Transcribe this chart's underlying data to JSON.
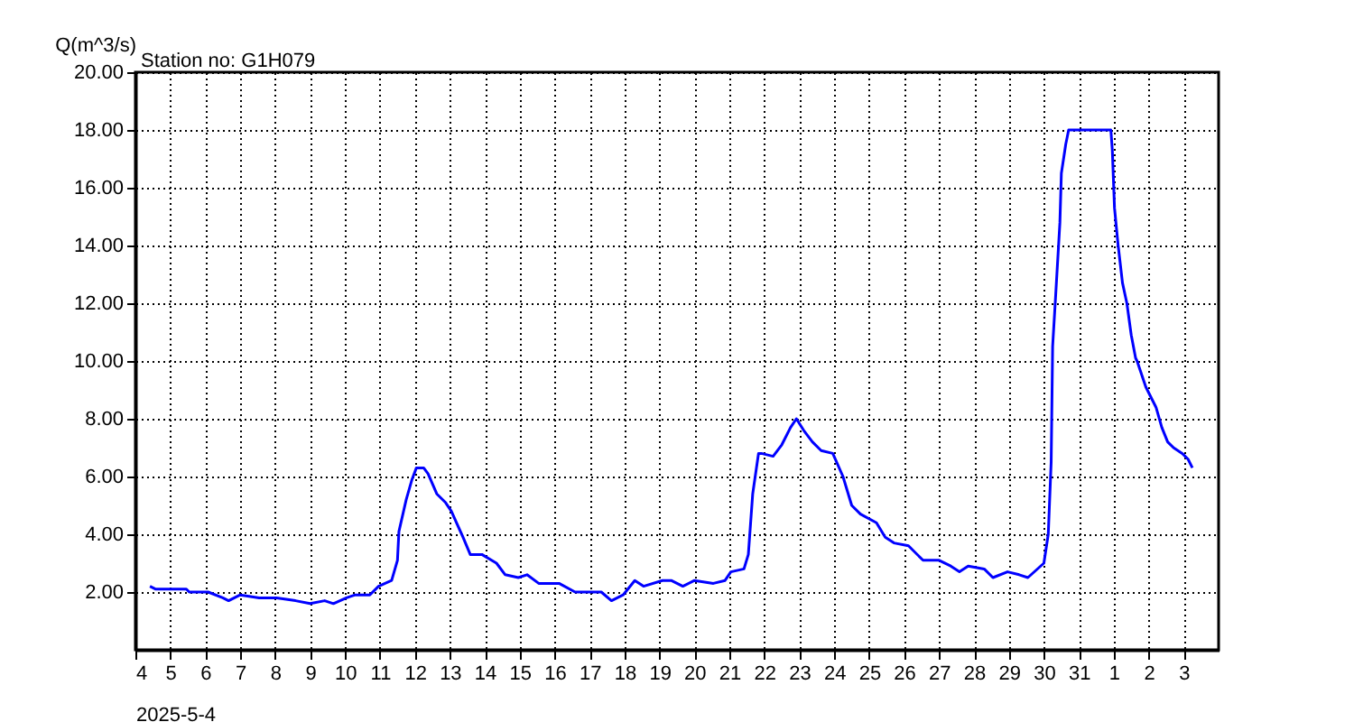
{
  "chart_data": {
    "type": "line",
    "title": "Station no: G1H079",
    "ylabel": "Q(m^3/s)",
    "xlabel": "2025-5-4",
    "x": [
      "2025-05-04T10:00",
      "2025-05-04T14:00",
      "2025-05-05T11:00",
      "2025-05-05T13:00",
      "2025-05-06T02:00",
      "2025-05-06T12:00",
      "2025-05-06T16:00",
      "2025-05-07T00:00",
      "2025-05-07T13:00",
      "2025-05-08T01:00",
      "2025-05-08T14:00",
      "2025-05-09T00:00",
      "2025-05-09T10:00",
      "2025-05-09T16:00",
      "2025-05-10T01:00",
      "2025-05-10T07:00",
      "2025-05-10T17:00",
      "2025-05-10T23:00",
      "2025-05-11T08:00",
      "2025-05-11T12:00",
      "2025-05-11T13:00",
      "2025-05-11T18:00",
      "2025-05-11T22:00",
      "2025-05-12T01:00",
      "2025-05-12T06:00",
      "2025-05-12T09:00",
      "2025-05-12T15:00",
      "2025-05-12T21:00",
      "2025-05-13T01:00",
      "2025-05-13T09:00",
      "2025-05-13T14:00",
      "2025-05-13T22:00",
      "2025-05-14T08:00",
      "2025-05-14T14:00",
      "2025-05-14T23:00",
      "2025-05-15T05:00",
      "2025-05-15T13:00",
      "2025-05-15T21:00",
      "2025-05-16T03:00",
      "2025-05-16T14:00",
      "2025-05-16T22:00",
      "2025-05-17T08:00",
      "2025-05-17T15:00",
      "2025-05-17T23:00",
      "2025-05-18T07:00",
      "2025-05-18T13:00",
      "2025-05-19T02:00",
      "2025-05-19T08:00",
      "2025-05-19T16:00",
      "2025-05-20T00:00",
      "2025-05-20T13:00",
      "2025-05-20T21:00",
      "2025-05-21T01:00",
      "2025-05-21T10:00",
      "2025-05-21T13:00",
      "2025-05-21T16:00",
      "2025-05-21T20:00",
      "2025-05-21T22:00",
      "2025-05-22T06:00",
      "2025-05-22T12:00",
      "2025-05-22T18:00",
      "2025-05-22T22:00",
      "2025-05-23T03:00",
      "2025-05-23T09:00",
      "2025-05-23T15:00",
      "2025-05-23T23:00",
      "2025-05-24T06:00",
      "2025-05-24T12:00",
      "2025-05-24T18:00",
      "2025-05-25T05:00",
      "2025-05-25T11:00",
      "2025-05-25T17:00",
      "2025-05-26T03:00",
      "2025-05-26T13:00",
      "2025-05-27T00:00",
      "2025-05-27T08:00",
      "2025-05-27T14:00",
      "2025-05-27T20:00",
      "2025-05-28T07:00",
      "2025-05-28T13:00",
      "2025-05-28T23:00",
      "2025-05-29T07:00",
      "2025-05-29T13:00",
      "2025-05-30T00:00",
      "2025-05-30T03:00",
      "2025-05-30T05:00",
      "2025-05-30T06:00",
      "2025-05-30T08:00",
      "2025-05-30T11:00",
      "2025-05-30T12:00",
      "2025-05-30T15:00",
      "2025-05-30T17:00",
      "2025-05-31T22:00",
      "2025-05-31T23:00",
      "2025-06-01T00:30",
      "2025-06-01T03:00",
      "2025-06-01T06:00",
      "2025-06-01T09:00",
      "2025-06-01T12:00",
      "2025-06-01T15:00",
      "2025-06-01T16:00",
      "2025-06-01T22:00",
      "2025-06-02T05:00",
      "2025-06-02T09:00",
      "2025-06-02T13:00",
      "2025-06-02T17:00",
      "2025-06-02T23:00",
      "2025-06-03T03:00",
      "2025-06-03T06:00"
    ],
    "series": [
      {
        "color": "#0000ff",
        "values": [
          2.2,
          2.1,
          2.1,
          2.0,
          2.0,
          1.8,
          1.7,
          1.9,
          1.8,
          1.8,
          1.7,
          1.6,
          1.7,
          1.6,
          1.8,
          1.9,
          1.9,
          2.2,
          2.4,
          3.1,
          4.1,
          5.2,
          5.9,
          6.3,
          6.3,
          6.1,
          5.4,
          5.1,
          4.8,
          3.9,
          3.3,
          3.3,
          3.0,
          2.6,
          2.5,
          2.6,
          2.3,
          2.3,
          2.3,
          2.0,
          2.0,
          2.0,
          1.7,
          1.9,
          2.4,
          2.2,
          2.4,
          2.4,
          2.2,
          2.4,
          2.3,
          2.4,
          2.7,
          2.8,
          3.3,
          5.4,
          6.8,
          6.8,
          6.7,
          7.1,
          7.7,
          8.0,
          7.6,
          7.2,
          6.9,
          6.8,
          6.0,
          5.0,
          4.7,
          4.4,
          3.9,
          3.7,
          3.6,
          3.1,
          3.1,
          2.9,
          2.7,
          2.9,
          2.8,
          2.5,
          2.7,
          2.6,
          2.5,
          3.0,
          4.0,
          6.5,
          10.5,
          12.2,
          14.8,
          16.5,
          17.5,
          18.0,
          18.0,
          17.3,
          15.3,
          14.0,
          12.7,
          12.0,
          10.9,
          10.1,
          10.0,
          9.1,
          8.4,
          7.7,
          7.2,
          7.0,
          6.8,
          6.6,
          6.3
        ]
      }
    ],
    "xlim": [
      "2025-05-04",
      "2025-06-04"
    ],
    "xticks": [
      {
        "value": "2025-05-04",
        "label": "4"
      },
      {
        "value": "2025-05-05",
        "label": "5"
      },
      {
        "value": "2025-05-06",
        "label": "6"
      },
      {
        "value": "2025-05-07",
        "label": "7"
      },
      {
        "value": "2025-05-08",
        "label": "8"
      },
      {
        "value": "2025-05-09",
        "label": "9"
      },
      {
        "value": "2025-05-10",
        "label": "10"
      },
      {
        "value": "2025-05-11",
        "label": "11"
      },
      {
        "value": "2025-05-12",
        "label": "12"
      },
      {
        "value": "2025-05-13",
        "label": "13"
      },
      {
        "value": "2025-05-14",
        "label": "14"
      },
      {
        "value": "2025-05-15",
        "label": "15"
      },
      {
        "value": "2025-05-16",
        "label": "16"
      },
      {
        "value": "2025-05-17",
        "label": "17"
      },
      {
        "value": "2025-05-18",
        "label": "18"
      },
      {
        "value": "2025-05-19",
        "label": "19"
      },
      {
        "value": "2025-05-20",
        "label": "20"
      },
      {
        "value": "2025-05-21",
        "label": "21"
      },
      {
        "value": "2025-05-22",
        "label": "22"
      },
      {
        "value": "2025-05-23",
        "label": "23"
      },
      {
        "value": "2025-05-24",
        "label": "24"
      },
      {
        "value": "2025-05-25",
        "label": "25"
      },
      {
        "value": "2025-05-26",
        "label": "26"
      },
      {
        "value": "2025-05-27",
        "label": "27"
      },
      {
        "value": "2025-05-28",
        "label": "28"
      },
      {
        "value": "2025-05-29",
        "label": "29"
      },
      {
        "value": "2025-05-30",
        "label": "30"
      },
      {
        "value": "2025-05-31",
        "label": "31"
      },
      {
        "value": "2025-06-01",
        "label": "1"
      },
      {
        "value": "2025-06-02",
        "label": "2"
      },
      {
        "value": "2025-06-03",
        "label": "3"
      }
    ],
    "ylim": [
      0,
      20
    ],
    "yticks": [
      {
        "value": 2,
        "label": "2.00"
      },
      {
        "value": 4,
        "label": "4.00"
      },
      {
        "value": 6,
        "label": "6.00"
      },
      {
        "value": 8,
        "label": "8.00"
      },
      {
        "value": 10,
        "label": "10.00"
      },
      {
        "value": 12,
        "label": "12.00"
      },
      {
        "value": 14,
        "label": "14.00"
      },
      {
        "value": 16,
        "label": "16.00"
      },
      {
        "value": 18,
        "label": "18.00"
      },
      {
        "value": 20,
        "label": "20.00"
      }
    ],
    "grid": true,
    "marker": "none",
    "line_style": "solid"
  }
}
